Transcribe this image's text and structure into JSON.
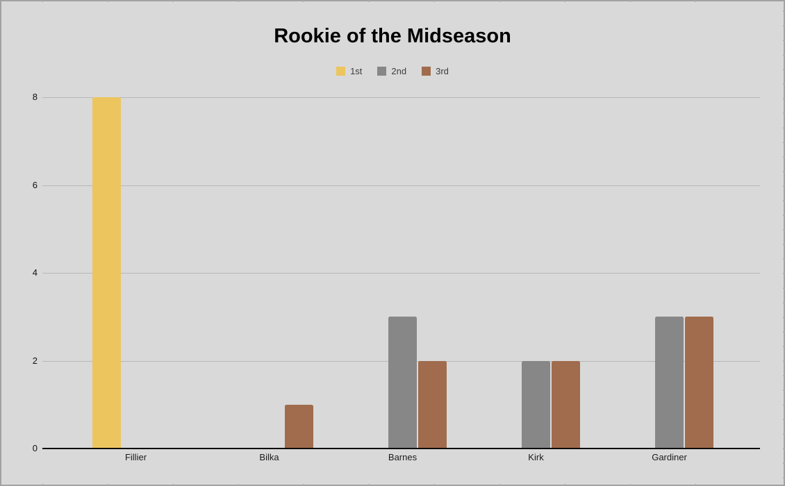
{
  "window": {
    "background_color": "#d9d9d9",
    "border_color": "#a2a2a2"
  },
  "chart_data": {
    "type": "bar",
    "title": "Rookie of the Midseason",
    "categories": [
      "Fillier",
      "Bilka",
      "Barnes",
      "Kirk",
      "Gardiner"
    ],
    "series": [
      {
        "name": "1st",
        "color": "#ecc55f",
        "values": [
          8,
          0,
          0,
          0,
          0
        ]
      },
      {
        "name": "2nd",
        "color": "#878787",
        "values": [
          0,
          0,
          3,
          2,
          3
        ]
      },
      {
        "name": "3rd",
        "color": "#a06c4d",
        "values": [
          0,
          1,
          2,
          2,
          3
        ]
      }
    ],
    "ylim": [
      0,
      8
    ],
    "yticks": [
      0,
      2,
      4,
      6,
      8
    ],
    "grid": true,
    "gridline_color": "#b7b7b7",
    "axis_color": "#0c0c0c",
    "legend_position": "top"
  }
}
